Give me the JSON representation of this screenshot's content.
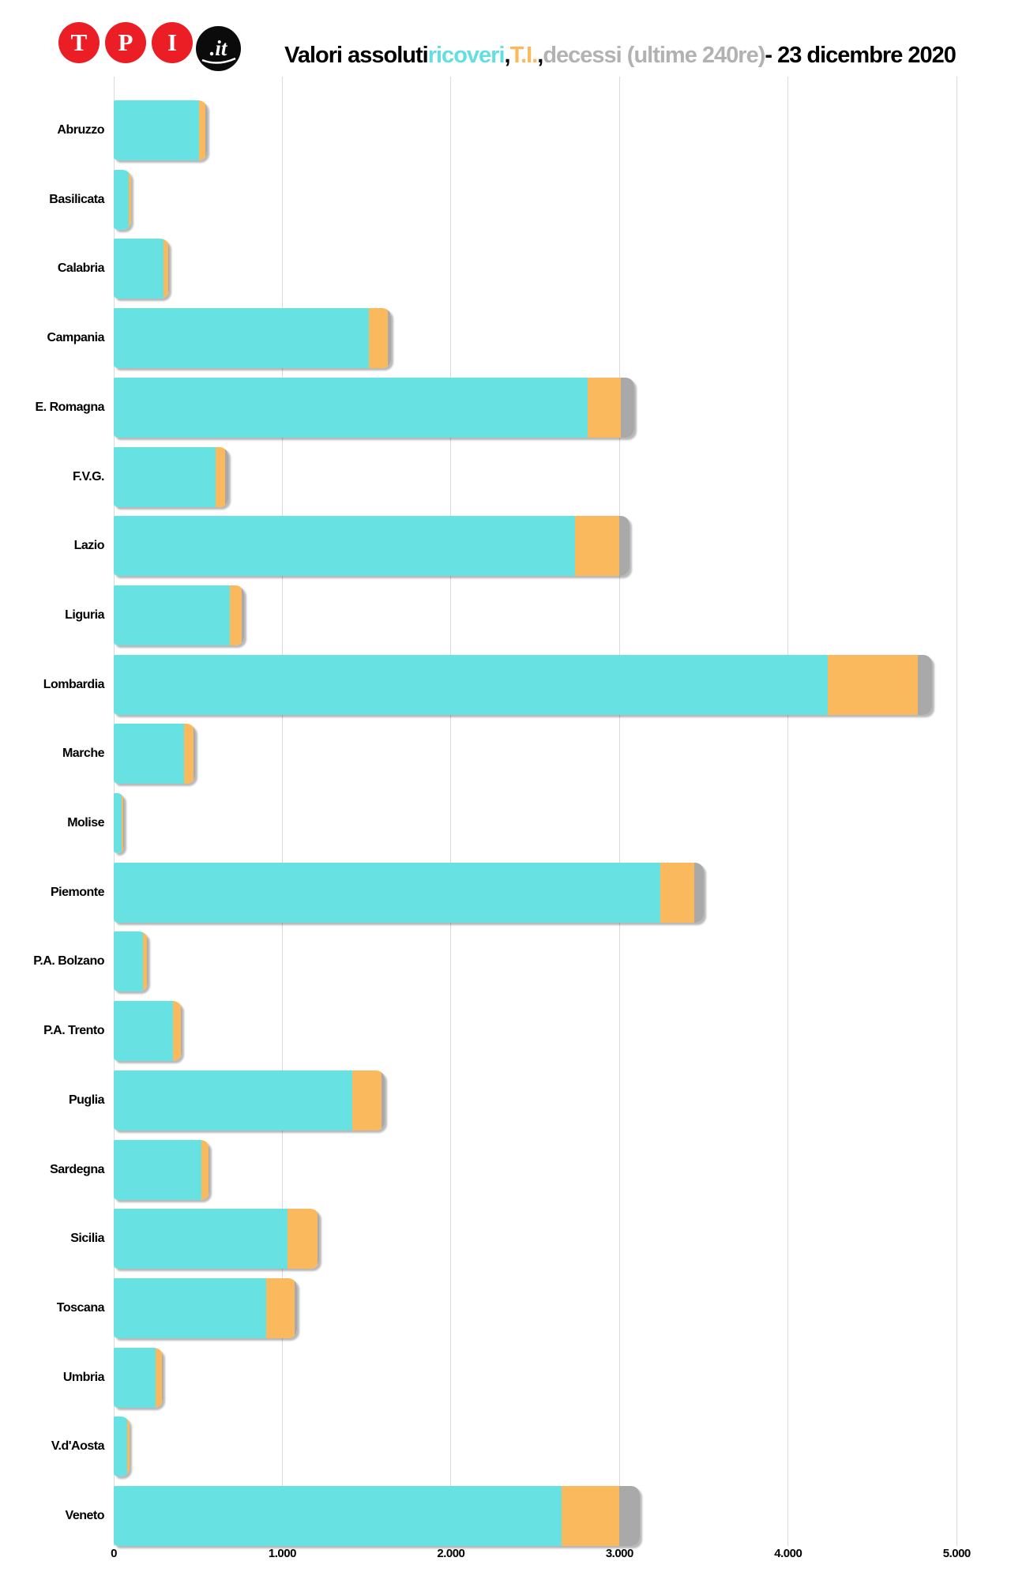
{
  "header": {
    "logo": {
      "letters": [
        "T",
        "P",
        "I"
      ],
      "suffix": ".it"
    },
    "title_parts": [
      {
        "text": "Valori assoluti ",
        "color": "#000000"
      },
      {
        "text": "ricoveri",
        "color": "#62DFE1"
      },
      {
        "text": ", ",
        "color": "#000000"
      },
      {
        "text": "T.I.",
        "color": "#FBB95D"
      },
      {
        "text": ", ",
        "color": "#000000"
      },
      {
        "text": "decessi (ultime 240re)",
        "color": "#B2B2B2"
      },
      {
        "text": "- 23 dicembre 2020",
        "color": "#000000"
      }
    ]
  },
  "chart_data": {
    "type": "bar",
    "orientation": "horizontal",
    "stacked": true,
    "title": "Valori assoluti ricoveri, T.I., decessi (ultime 240re) - 23 dicembre 2020",
    "categories": [
      "Abruzzo",
      "Basilicata",
      "Calabria",
      "Campania",
      "E. Romagna",
      "F.V.G.",
      "Lazio",
      "Liguria",
      "Lombardia",
      "Marche",
      "Molise",
      "Piemonte",
      "P.A. Bolzano",
      "P.A. Trento",
      "Puglia",
      "Sardegna",
      "Sicilia",
      "Toscana",
      "Umbria",
      "V.d'Aosta",
      "Veneto"
    ],
    "series": [
      {
        "name": "ricoveri",
        "color": "#68E1E3",
        "values": [
          505,
          90,
          297,
          1515,
          2810,
          605,
          2735,
          687,
          4235,
          415,
          46,
          3240,
          173,
          350,
          1417,
          518,
          1030,
          905,
          250,
          80,
          2655
        ]
      },
      {
        "name": "T.I.",
        "color": "#FBB95D",
        "values": [
          40,
          12,
          25,
          110,
          200,
          55,
          265,
          70,
          535,
          60,
          12,
          205,
          25,
          46,
          170,
          42,
          180,
          170,
          38,
          12,
          345
        ]
      },
      {
        "name": "decessi",
        "color": "#A9A9A9",
        "values": [
          8,
          3,
          8,
          18,
          78,
          20,
          58,
          15,
          85,
          8,
          2,
          55,
          5,
          6,
          20,
          8,
          10,
          12,
          4,
          3,
          118
        ]
      }
    ],
    "x_axis": {
      "ticks": [
        "0",
        "1.000",
        "2.000",
        "3.000",
        "4.000",
        "5.000"
      ],
      "tick_values": [
        0,
        1000,
        2000,
        3000,
        4000,
        5000
      ],
      "min": 0,
      "max": 5000
    },
    "grid": true,
    "legend_position": "encoded-in-title"
  }
}
